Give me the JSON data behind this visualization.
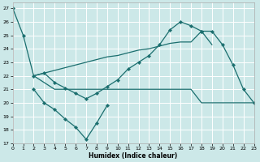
{
  "xlabel": "Humidex (Indice chaleur)",
  "bg_color": "#cce8e8",
  "grid_color": "#b8d8d8",
  "line_color": "#1a6e6e",
  "xlim": [
    0,
    23
  ],
  "ylim": [
    17,
    27.4
  ],
  "xticks": [
    0,
    1,
    2,
    3,
    4,
    5,
    6,
    7,
    8,
    9,
    10,
    11,
    12,
    13,
    14,
    15,
    16,
    17,
    18,
    19,
    20,
    21,
    22,
    23
  ],
  "yticks": [
    17,
    18,
    19,
    20,
    21,
    22,
    23,
    24,
    25,
    26,
    27
  ],
  "s1_x": [
    0,
    1,
    2,
    3,
    4,
    5,
    6,
    7,
    8,
    9,
    10,
    11,
    12,
    13,
    14,
    15,
    16,
    17,
    18
  ],
  "s1_y": [
    27,
    25,
    22,
    22.2,
    21.5,
    21.1,
    20.7,
    20.3,
    20.7,
    21.2,
    21.7,
    22.5,
    23.0,
    23.5,
    24.3,
    25.4,
    26.0,
    25.7,
    25.3
  ],
  "s2_x": [
    2,
    3,
    4,
    5,
    6,
    7,
    8,
    9,
    10,
    11,
    12,
    13,
    14,
    15,
    16,
    17,
    18,
    19
  ],
  "s2_y": [
    22,
    22.2,
    22.4,
    22.6,
    22.8,
    23.0,
    23.2,
    23.4,
    23.5,
    23.7,
    23.9,
    24.0,
    24.2,
    24.4,
    24.5,
    24.5,
    25.3,
    24.3
  ],
  "s3_x": [
    2,
    3,
    4,
    5,
    6,
    7,
    8,
    9,
    10,
    11,
    12,
    13,
    14,
    15,
    16,
    17,
    18,
    19,
    20,
    21,
    22,
    23
  ],
  "s3_y": [
    22,
    21.5,
    21.0,
    21.0,
    21.0,
    21.0,
    21.0,
    21.0,
    21.0,
    21.0,
    21.0,
    21.0,
    21.0,
    21.0,
    21.0,
    21.0,
    20.0,
    20.0,
    20.0,
    20.0,
    20.0,
    20.0
  ],
  "s4_x": [
    2,
    3,
    4,
    5,
    6,
    7,
    8,
    9
  ],
  "s4_y": [
    21.0,
    20.0,
    19.5,
    18.8,
    18.2,
    17.3,
    18.5,
    19.8
  ],
  "s5_x": [
    18,
    19,
    20,
    21,
    22,
    23
  ],
  "s5_y": [
    25.3,
    25.3,
    24.3,
    22.8,
    21.0,
    20.0
  ]
}
